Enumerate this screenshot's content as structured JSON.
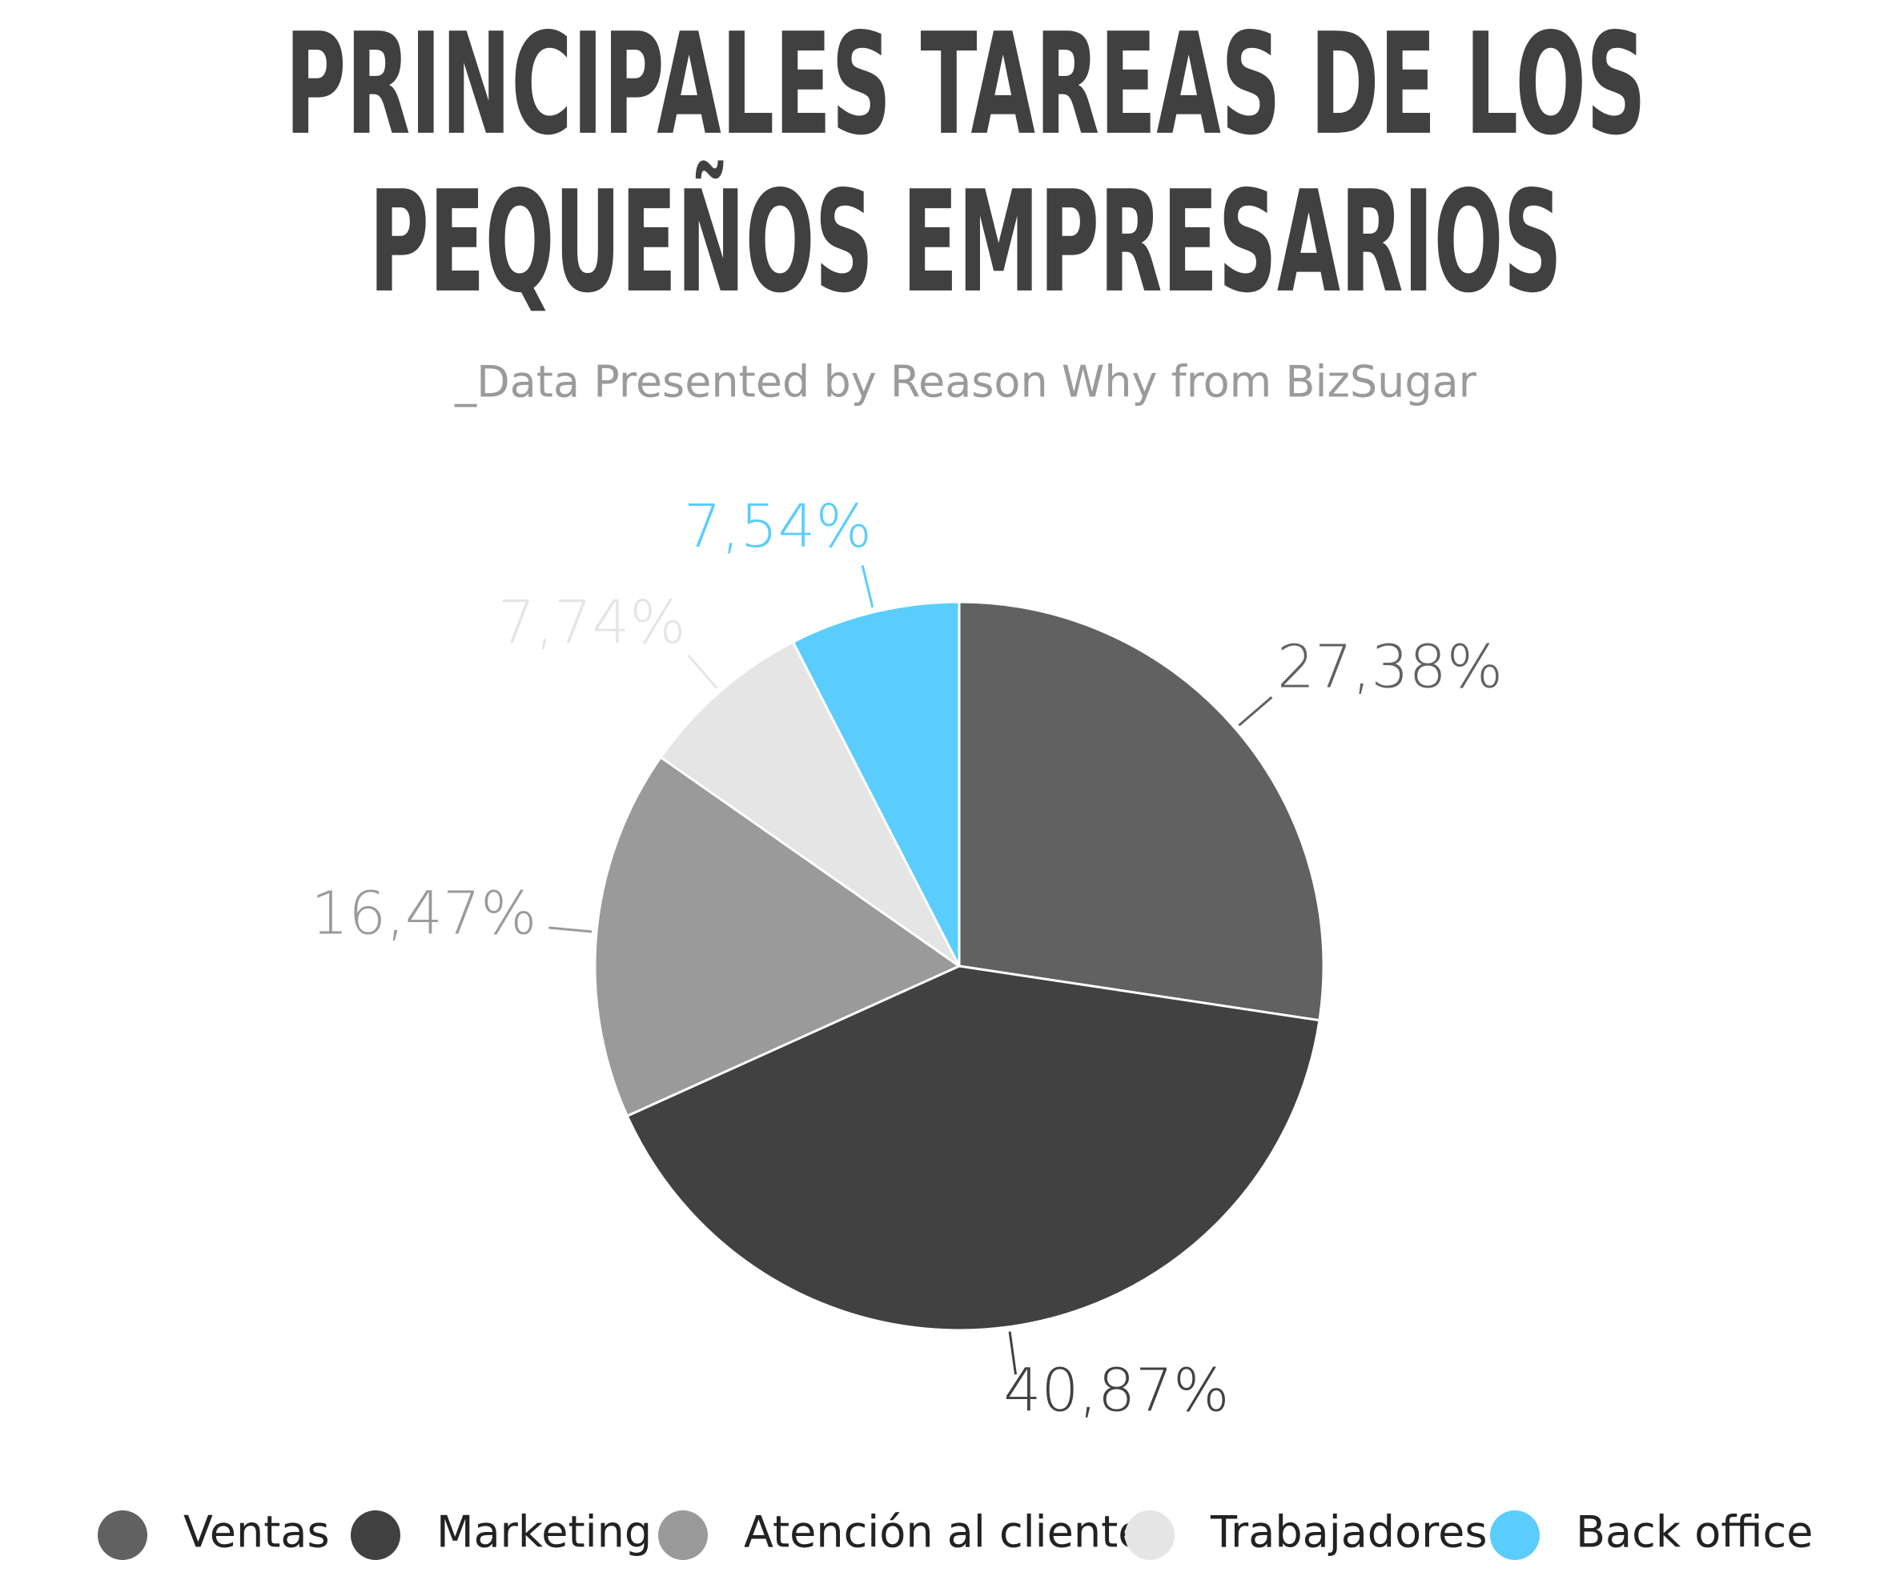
{
  "chart_data": {
    "type": "pie",
    "title": [
      "PRINCIPALES TAREAS DE LOS",
      "PEQUEÑOS EMPRESARIOS"
    ],
    "subtitle": "_Data Presented by Reason Why from BizSugar",
    "categories": [
      "Ventas",
      "Marketing",
      "Atención al cliente",
      "Trabajadores",
      "Back office"
    ],
    "values": [
      27.38,
      40.87,
      16.47,
      7.74,
      7.54
    ],
    "value_labels": [
      "27,38%",
      "40,87%",
      "16,47%",
      "7,74%",
      "7,54%"
    ],
    "colors": [
      "#616161",
      "#414141",
      "#9a9a9a",
      "#e5e5e5",
      "#5bcdfc"
    ],
    "legend": "bottom"
  }
}
